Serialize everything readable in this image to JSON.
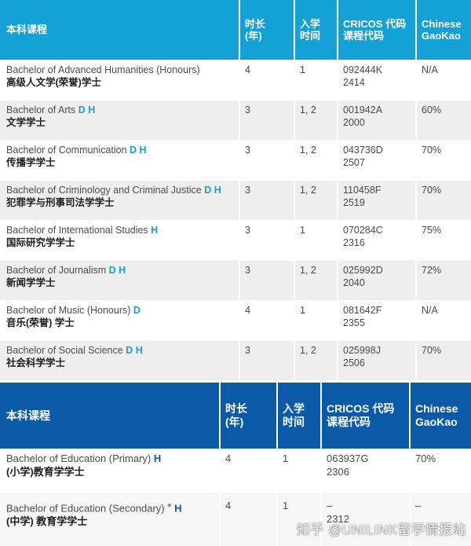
{
  "table1": {
    "headers": [
      "本科课程",
      "时长\n(年)",
      "入学\n时间",
      "CRICOS 代码\n课程代码",
      "Chinese\nGaoKao"
    ],
    "rows": [
      {
        "en": "Bachelor of Advanced Humanities (Honours)",
        "flags": "",
        "cn": "高级人文学(荣誉)学士",
        "duration": "4",
        "intake": "1",
        "code1": "092444K",
        "code2": "2414",
        "gaokao": "N/A"
      },
      {
        "en": "Bachelor of Arts",
        "flags": "D H",
        "cn": "文学学士",
        "duration": "3",
        "intake": "1, 2",
        "code1": "001942A",
        "code2": "2000",
        "gaokao": "60%"
      },
      {
        "en": "Bachelor of Communication",
        "flags": "D H",
        "cn": "传播学学士",
        "duration": "3",
        "intake": "1, 2",
        "code1": "043736D",
        "code2": "2507",
        "gaokao": "70%"
      },
      {
        "en": "Bachelor of Criminology and Criminal Justice",
        "flags": "D H",
        "cn": "犯罪学与刑事司法学学士",
        "duration": "3",
        "intake": "1, 2",
        "code1": "110458F",
        "code2": "2519",
        "gaokao": "70%"
      },
      {
        "en": "Bachelor of International Studies",
        "flags": "H",
        "cn": "国际研究学学士",
        "duration": "3",
        "intake": "1",
        "code1": "070284C",
        "code2": "2316",
        "gaokao": "75%"
      },
      {
        "en": "Bachelor of Journalism",
        "flags": "D H",
        "cn": "新闻学学士",
        "duration": "3",
        "intake": "1, 2",
        "code1": "025992D",
        "code2": "2040",
        "gaokao": "72%"
      },
      {
        "en": "Bachelor of Music (Honours)",
        "flags": "D",
        "cn": "音乐(荣誉) 学士",
        "duration": "4",
        "intake": "1",
        "code1": "081642F",
        "code2": "2355",
        "gaokao": "N/A"
      },
      {
        "en": "Bachelor of Social Science",
        "flags": "D H",
        "cn": "社会科学学士",
        "duration": "3",
        "intake": "1, 2",
        "code1": "025998J",
        "code2": "2506",
        "gaokao": "70%"
      }
    ]
  },
  "table2": {
    "headers": [
      "本科课程",
      "时长\n(年)",
      "入学\n时间",
      "CRICOS 代码\n课程代码",
      "Chinese\nGaoKao"
    ],
    "rows": [
      {
        "en": "Bachelor of Education (Primary)",
        "sup": "",
        "flags": "H",
        "cn": "(小学)教育学学士",
        "duration": "4",
        "intake": "1",
        "code1": "063937G",
        "code2": "2306",
        "gaokao": "70%"
      },
      {
        "en": "Bachelor of Education (Secondary)",
        "sup": "+",
        "flags": "H",
        "cn": "(中学) 教育学学士",
        "duration": "4",
        "intake": "1",
        "code1": "–",
        "code2": "2312",
        "gaokao": "–"
      }
    ]
  },
  "watermark": "知乎 @UNILINK留学情报站",
  "colors": {
    "header1": "#14a1d6",
    "header2": "#0b5aa8",
    "row_alt": "#eeeeee"
  }
}
